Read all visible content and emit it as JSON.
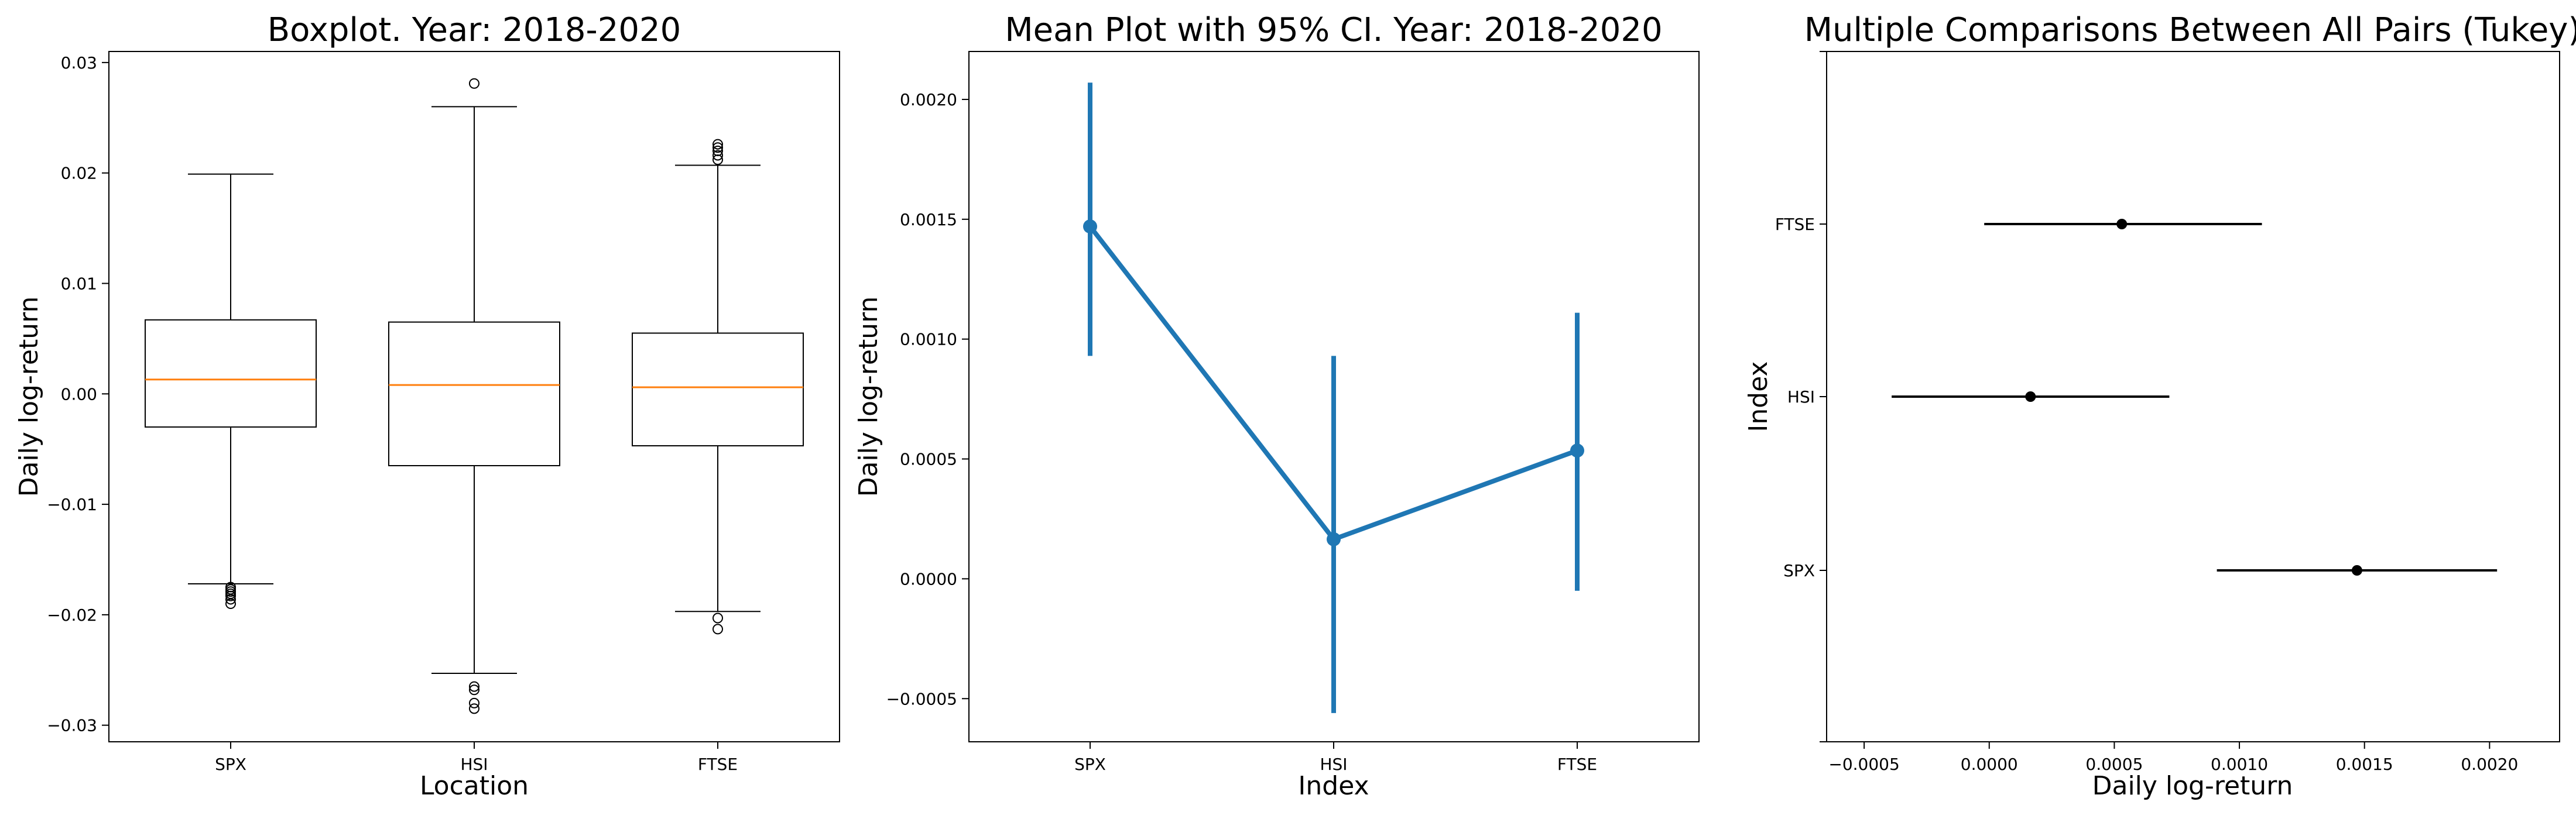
{
  "chart_data": [
    {
      "type": "boxplot",
      "title": "Boxplot. Year: 2018-2020",
      "xlabel": "Location",
      "ylabel": "Daily log-return",
      "categories": [
        "SPX",
        "HSI",
        "FTSE"
      ],
      "ylim": [
        -0.0315,
        0.031
      ],
      "yticks": [
        -0.03,
        -0.02,
        -0.01,
        0.0,
        0.01,
        0.02,
        0.03
      ],
      "ytick_labels": [
        "−0.03",
        "−0.02",
        "−0.01",
        "0.00",
        "0.01",
        "0.02",
        "0.03"
      ],
      "colors": {
        "box": "#000000",
        "median": "#ff7f0e"
      },
      "boxes": [
        {
          "name": "SPX",
          "whisker_low": -0.0172,
          "q1": -0.003,
          "median": 0.0013,
          "q3": 0.0067,
          "whisker_high": 0.0199,
          "fliers": [
            -0.0175,
            -0.0177,
            -0.0179,
            -0.0181,
            -0.0183,
            -0.0186,
            -0.019
          ]
        },
        {
          "name": "HSI",
          "whisker_low": -0.0253,
          "q1": -0.0065,
          "median": 0.0008,
          "q3": 0.0065,
          "whisker_high": 0.026,
          "fliers": [
            -0.0265,
            -0.0268,
            -0.028,
            -0.0285,
            0.0281
          ]
        },
        {
          "name": "FTSE",
          "whisker_low": -0.0197,
          "q1": -0.0047,
          "median": 0.0006,
          "q3": 0.0055,
          "whisker_high": 0.0207,
          "fliers": [
            -0.0203,
            -0.0213,
            0.0212,
            0.0216,
            0.022,
            0.0223,
            0.0226
          ]
        }
      ]
    },
    {
      "type": "line",
      "title": "Mean Plot with 95% CI. Year: 2018-2020",
      "xlabel": "Index",
      "ylabel": "Daily log-return",
      "categories": [
        "SPX",
        "HSI",
        "FTSE"
      ],
      "ylim": [
        -0.00068,
        0.0022
      ],
      "yticks": [
        -0.0005,
        0.0,
        0.0005,
        0.001,
        0.0015,
        0.002
      ],
      "ytick_labels": [
        "−0.0005",
        "0.0000",
        "0.0005",
        "0.0010",
        "0.0015",
        "0.0020"
      ],
      "colors": {
        "line": "#1f77b4"
      },
      "series": [
        {
          "values": [
            0.00147,
            0.000165,
            0.000535
          ],
          "ci_low": [
            0.00093,
            -0.00056,
            -5e-05
          ],
          "ci_high": [
            0.00207,
            0.00093,
            0.00111
          ]
        }
      ]
    },
    {
      "type": "scatter",
      "title": "Multiple Comparisons Between All Pairs (Tukey)",
      "xlabel": "Daily log-return",
      "ylabel": "Index",
      "categories": [
        "FTSE",
        "HSI",
        "SPX"
      ],
      "xlim": [
        -0.00065,
        0.00228
      ],
      "xticks": [
        -0.0005,
        0.0,
        0.0005,
        0.001,
        0.0015,
        0.002
      ],
      "xtick_labels": [
        "−0.0005",
        "0.0000",
        "0.0005",
        "0.0010",
        "0.0015",
        "0.0020"
      ],
      "colors": {
        "marker": "#000000"
      },
      "points": [
        {
          "name": "FTSE",
          "mean": 0.00053,
          "low": -2e-05,
          "high": 0.00109
        },
        {
          "name": "HSI",
          "mean": 0.000165,
          "low": -0.00039,
          "high": 0.00072
        },
        {
          "name": "SPX",
          "mean": 0.00147,
          "low": 0.00091,
          "high": 0.00203
        }
      ]
    }
  ]
}
